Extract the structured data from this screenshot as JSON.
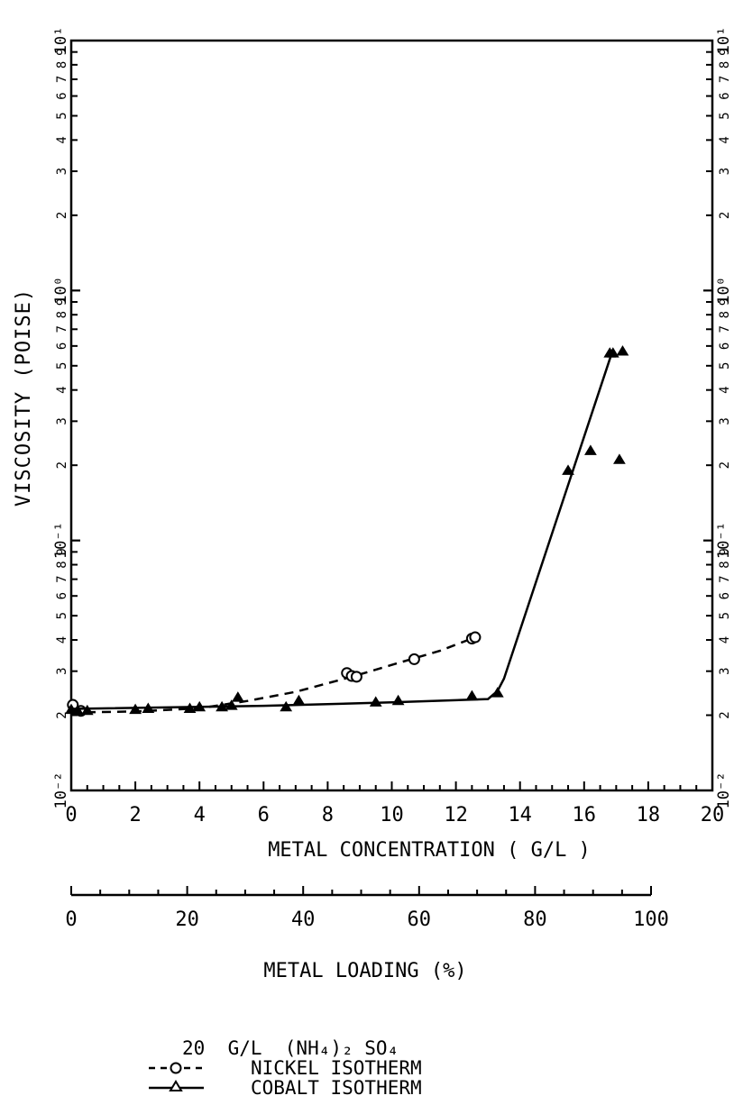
{
  "chart_data": {
    "type": "scatter",
    "title": "",
    "xlabel": "METAL CONCENTRATION ( G/L )",
    "ylabel": "VISCOSITY (POISE)",
    "xlim": [
      0,
      20
    ],
    "ylim": [
      0.01,
      1
    ],
    "yscale": "log",
    "x_ticks": [
      "0",
      "2",
      "4",
      "6",
      "8",
      "10",
      "12",
      "14",
      "16",
      "18",
      "20"
    ],
    "y_decade_labels": [
      "10⁻²",
      "10⁻¹",
      "10⁰",
      "10¹"
    ],
    "y_minor_labels": [
      "2",
      "3",
      "4",
      "5",
      "6",
      "7",
      "8",
      "9"
    ],
    "secondary_x_axis": {
      "label": "METAL LOADING (%)",
      "range": [
        0,
        100
      ],
      "ticks": [
        "0",
        "20",
        "40",
        "60",
        "80",
        "100"
      ]
    },
    "legend": {
      "header": "20  G/L  (NH₄)₂ SO₄",
      "entries": [
        "NICKEL ISOTHERM",
        "COBALT ISOTHERM"
      ],
      "position": "bottom-center"
    },
    "series": [
      {
        "name": "NICKEL ISOTHERM",
        "marker": "circle",
        "line": "dashed",
        "points": [
          [
            0.05,
            0.022
          ],
          [
            0.3,
            0.0208
          ],
          [
            8.6,
            0.0295
          ],
          [
            8.75,
            0.0287
          ],
          [
            8.9,
            0.0285
          ],
          [
            10.7,
            0.0335
          ],
          [
            12.5,
            0.0405
          ],
          [
            12.6,
            0.041
          ]
        ],
        "curve": [
          [
            0,
            0.0205
          ],
          [
            2,
            0.0207
          ],
          [
            4,
            0.0213
          ],
          [
            5.5,
            0.0228
          ],
          [
            7,
            0.0248
          ],
          [
            8.75,
            0.0285
          ],
          [
            10,
            0.0318
          ],
          [
            11.5,
            0.0362
          ],
          [
            12.6,
            0.041
          ]
        ]
      },
      {
        "name": "COBALT ISOTHERM",
        "marker": "triangle",
        "line": "solid",
        "points": [
          [
            0,
            0.021
          ],
          [
            0.2,
            0.0208
          ],
          [
            0.5,
            0.0208
          ],
          [
            2.0,
            0.021
          ],
          [
            2.4,
            0.0212
          ],
          [
            3.7,
            0.0212
          ],
          [
            4.0,
            0.0215
          ],
          [
            4.7,
            0.0215
          ],
          [
            5.0,
            0.0218
          ],
          [
            5.2,
            0.0235
          ],
          [
            6.7,
            0.0215
          ],
          [
            7.1,
            0.0228
          ],
          [
            9.5,
            0.0225
          ],
          [
            10.2,
            0.0228
          ],
          [
            12.5,
            0.0238
          ],
          [
            13.3,
            0.0245
          ],
          [
            15.5,
            0.19
          ],
          [
            16.2,
            0.228
          ],
          [
            16.8,
            0.56
          ],
          [
            16.9,
            0.56
          ],
          [
            17.1,
            0.21
          ],
          [
            17.2,
            0.57
          ]
        ],
        "curve": [
          [
            0,
            0.0212
          ],
          [
            6,
            0.0218
          ],
          [
            10,
            0.0225
          ],
          [
            13.0,
            0.0232
          ],
          [
            13.3,
            0.025
          ],
          [
            13.5,
            0.028
          ],
          [
            16.85,
            0.555
          ]
        ]
      }
    ]
  }
}
